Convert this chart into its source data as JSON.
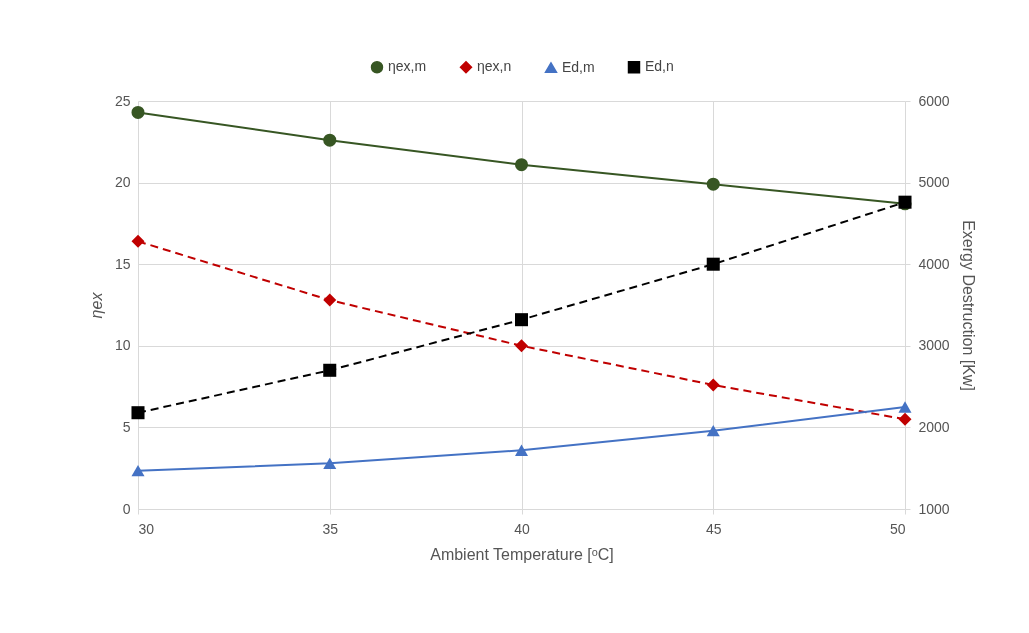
{
  "chart_data": {
    "type": "line",
    "xlabel": "Ambient Temperature [ᵒC]",
    "ylabel": "ηex",
    "y2label": "Exergy Destruction [Kw]",
    "x": [
      30,
      35,
      40,
      45,
      50
    ],
    "xlim": [
      30,
      50
    ],
    "xticks": [
      30,
      35,
      40,
      45,
      50
    ],
    "ylim": [
      0,
      25
    ],
    "yticks": [
      0,
      5,
      10,
      15,
      20,
      25
    ],
    "y2lim": [
      1000,
      6000
    ],
    "y2ticks": [
      1000,
      2000,
      3000,
      4000,
      5000,
      6000
    ],
    "grid": true,
    "legend": "top",
    "series": [
      {
        "name": "ηex,m",
        "color": "#375623",
        "marker": "circle",
        "line_style": "solid",
        "values": [
          24.3,
          22.6,
          21.1,
          19.9,
          18.7
        ]
      },
      {
        "name": "ηex,n",
        "color": "#c00000",
        "marker": "diamond",
        "line_style": "dashed",
        "values": [
          16.4,
          12.8,
          10.0,
          7.6,
          5.5
        ]
      },
      {
        "name": "Ed,m",
        "color": "#4472c4",
        "marker": "triangle",
        "line_style": "solid",
        "axis": "y2",
        "values": [
          1470,
          1560,
          1720,
          1960,
          2250
        ]
      },
      {
        "name": "Ed,n",
        "color": "#000000",
        "marker": "square",
        "line_style": "dashed",
        "axis": "y2",
        "values": [
          2180,
          2700,
          3320,
          4000,
          4760
        ]
      }
    ]
  }
}
